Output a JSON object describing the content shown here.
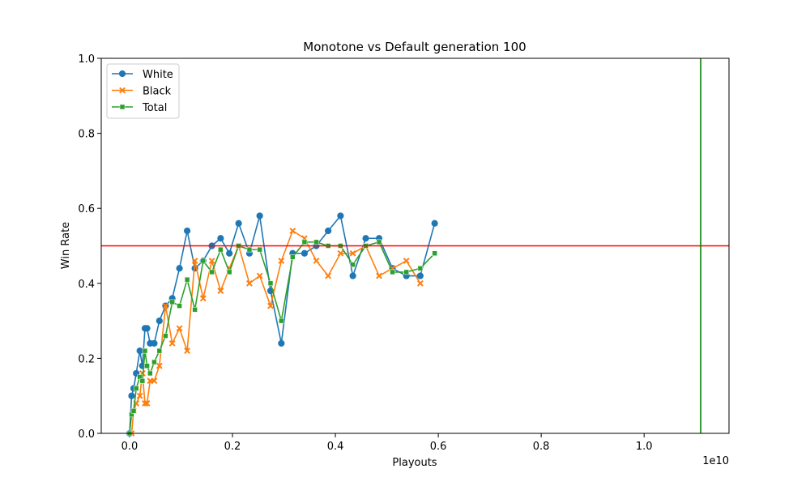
{
  "chart_data": {
    "type": "line",
    "title": "Monotone vs Default generation 100",
    "xlabel": "Playouts",
    "ylabel": "Win Rate",
    "x_offset_label": "1e10",
    "xlim": [
      -0.055,
      1.165
    ],
    "ylim": [
      0.0,
      1.0
    ],
    "x_ticks": [
      0.0,
      0.2,
      0.4,
      0.6,
      0.8,
      1.0
    ],
    "x_tick_labels": [
      "0.0",
      "0.2",
      "0.4",
      "0.6",
      "0.8",
      "1.0"
    ],
    "y_ticks": [
      0.0,
      0.2,
      0.4,
      0.6,
      0.8,
      1.0
    ],
    "y_tick_labels": [
      "0.0",
      "0.2",
      "0.4",
      "0.6",
      "0.8",
      "1.0"
    ],
    "grid": false,
    "legend_position": "upper-left",
    "x": [
      0.0,
      0.004,
      0.008,
      0.013,
      0.02,
      0.025,
      0.03,
      0.034,
      0.04,
      0.048,
      0.058,
      0.07,
      0.083,
      0.097,
      0.112,
      0.127,
      0.143,
      0.16,
      0.177,
      0.194,
      0.212,
      0.233,
      0.253,
      0.274,
      0.295,
      0.317,
      0.34,
      0.363,
      0.386,
      0.41,
      0.434,
      0.459,
      0.485,
      0.511,
      0.538,
      0.565,
      0.593,
      0.623
    ],
    "series": [
      {
        "name": "White",
        "color": "#1f77b4",
        "marker": "circle",
        "values": [
          0.0,
          0.1,
          0.12,
          0.16,
          0.22,
          0.18,
          0.28,
          0.28,
          0.24,
          0.24,
          0.3,
          0.34,
          0.36,
          0.44,
          0.54,
          0.44,
          0.46,
          0.5,
          0.52,
          0.48,
          0.56,
          0.48,
          0.58,
          0.38,
          0.24,
          0.48,
          0.48,
          0.5,
          0.54,
          0.58,
          0.42,
          0.52,
          0.52,
          0.44,
          0.42,
          0.42,
          0.56,
          null
        ]
      },
      {
        "name": "Black",
        "color": "#ff7f0e",
        "marker": "x",
        "values": [
          0.0,
          0.0,
          0.06,
          0.08,
          0.1,
          0.16,
          0.08,
          0.08,
          0.14,
          0.14,
          0.18,
          0.34,
          0.24,
          0.28,
          0.22,
          0.46,
          0.36,
          0.46,
          0.38,
          0.44,
          0.5,
          0.4,
          0.42,
          0.34,
          0.46,
          0.54,
          0.52,
          0.46,
          0.42,
          0.48,
          0.48,
          0.5,
          0.42,
          0.44,
          0.46,
          0.4,
          null,
          null
        ]
      },
      {
        "name": "Total",
        "color": "#2ca02c",
        "marker": "square",
        "values": [
          0.0,
          0.05,
          0.06,
          0.12,
          0.15,
          0.14,
          0.22,
          0.18,
          0.16,
          0.19,
          0.22,
          0.26,
          0.35,
          0.34,
          0.41,
          0.33,
          0.46,
          0.43,
          0.49,
          0.43,
          0.5,
          0.49,
          0.49,
          0.4,
          0.3,
          0.47,
          0.51,
          0.51,
          0.5,
          0.5,
          0.45,
          0.5,
          0.51,
          0.43,
          0.43,
          0.44,
          0.48,
          null
        ]
      }
    ],
    "reference_lines": [
      {
        "orientation": "horizontal",
        "value": 0.5,
        "color": "#ff0000"
      },
      {
        "orientation": "vertical",
        "value": 1.11,
        "color": "#008000"
      }
    ]
  }
}
